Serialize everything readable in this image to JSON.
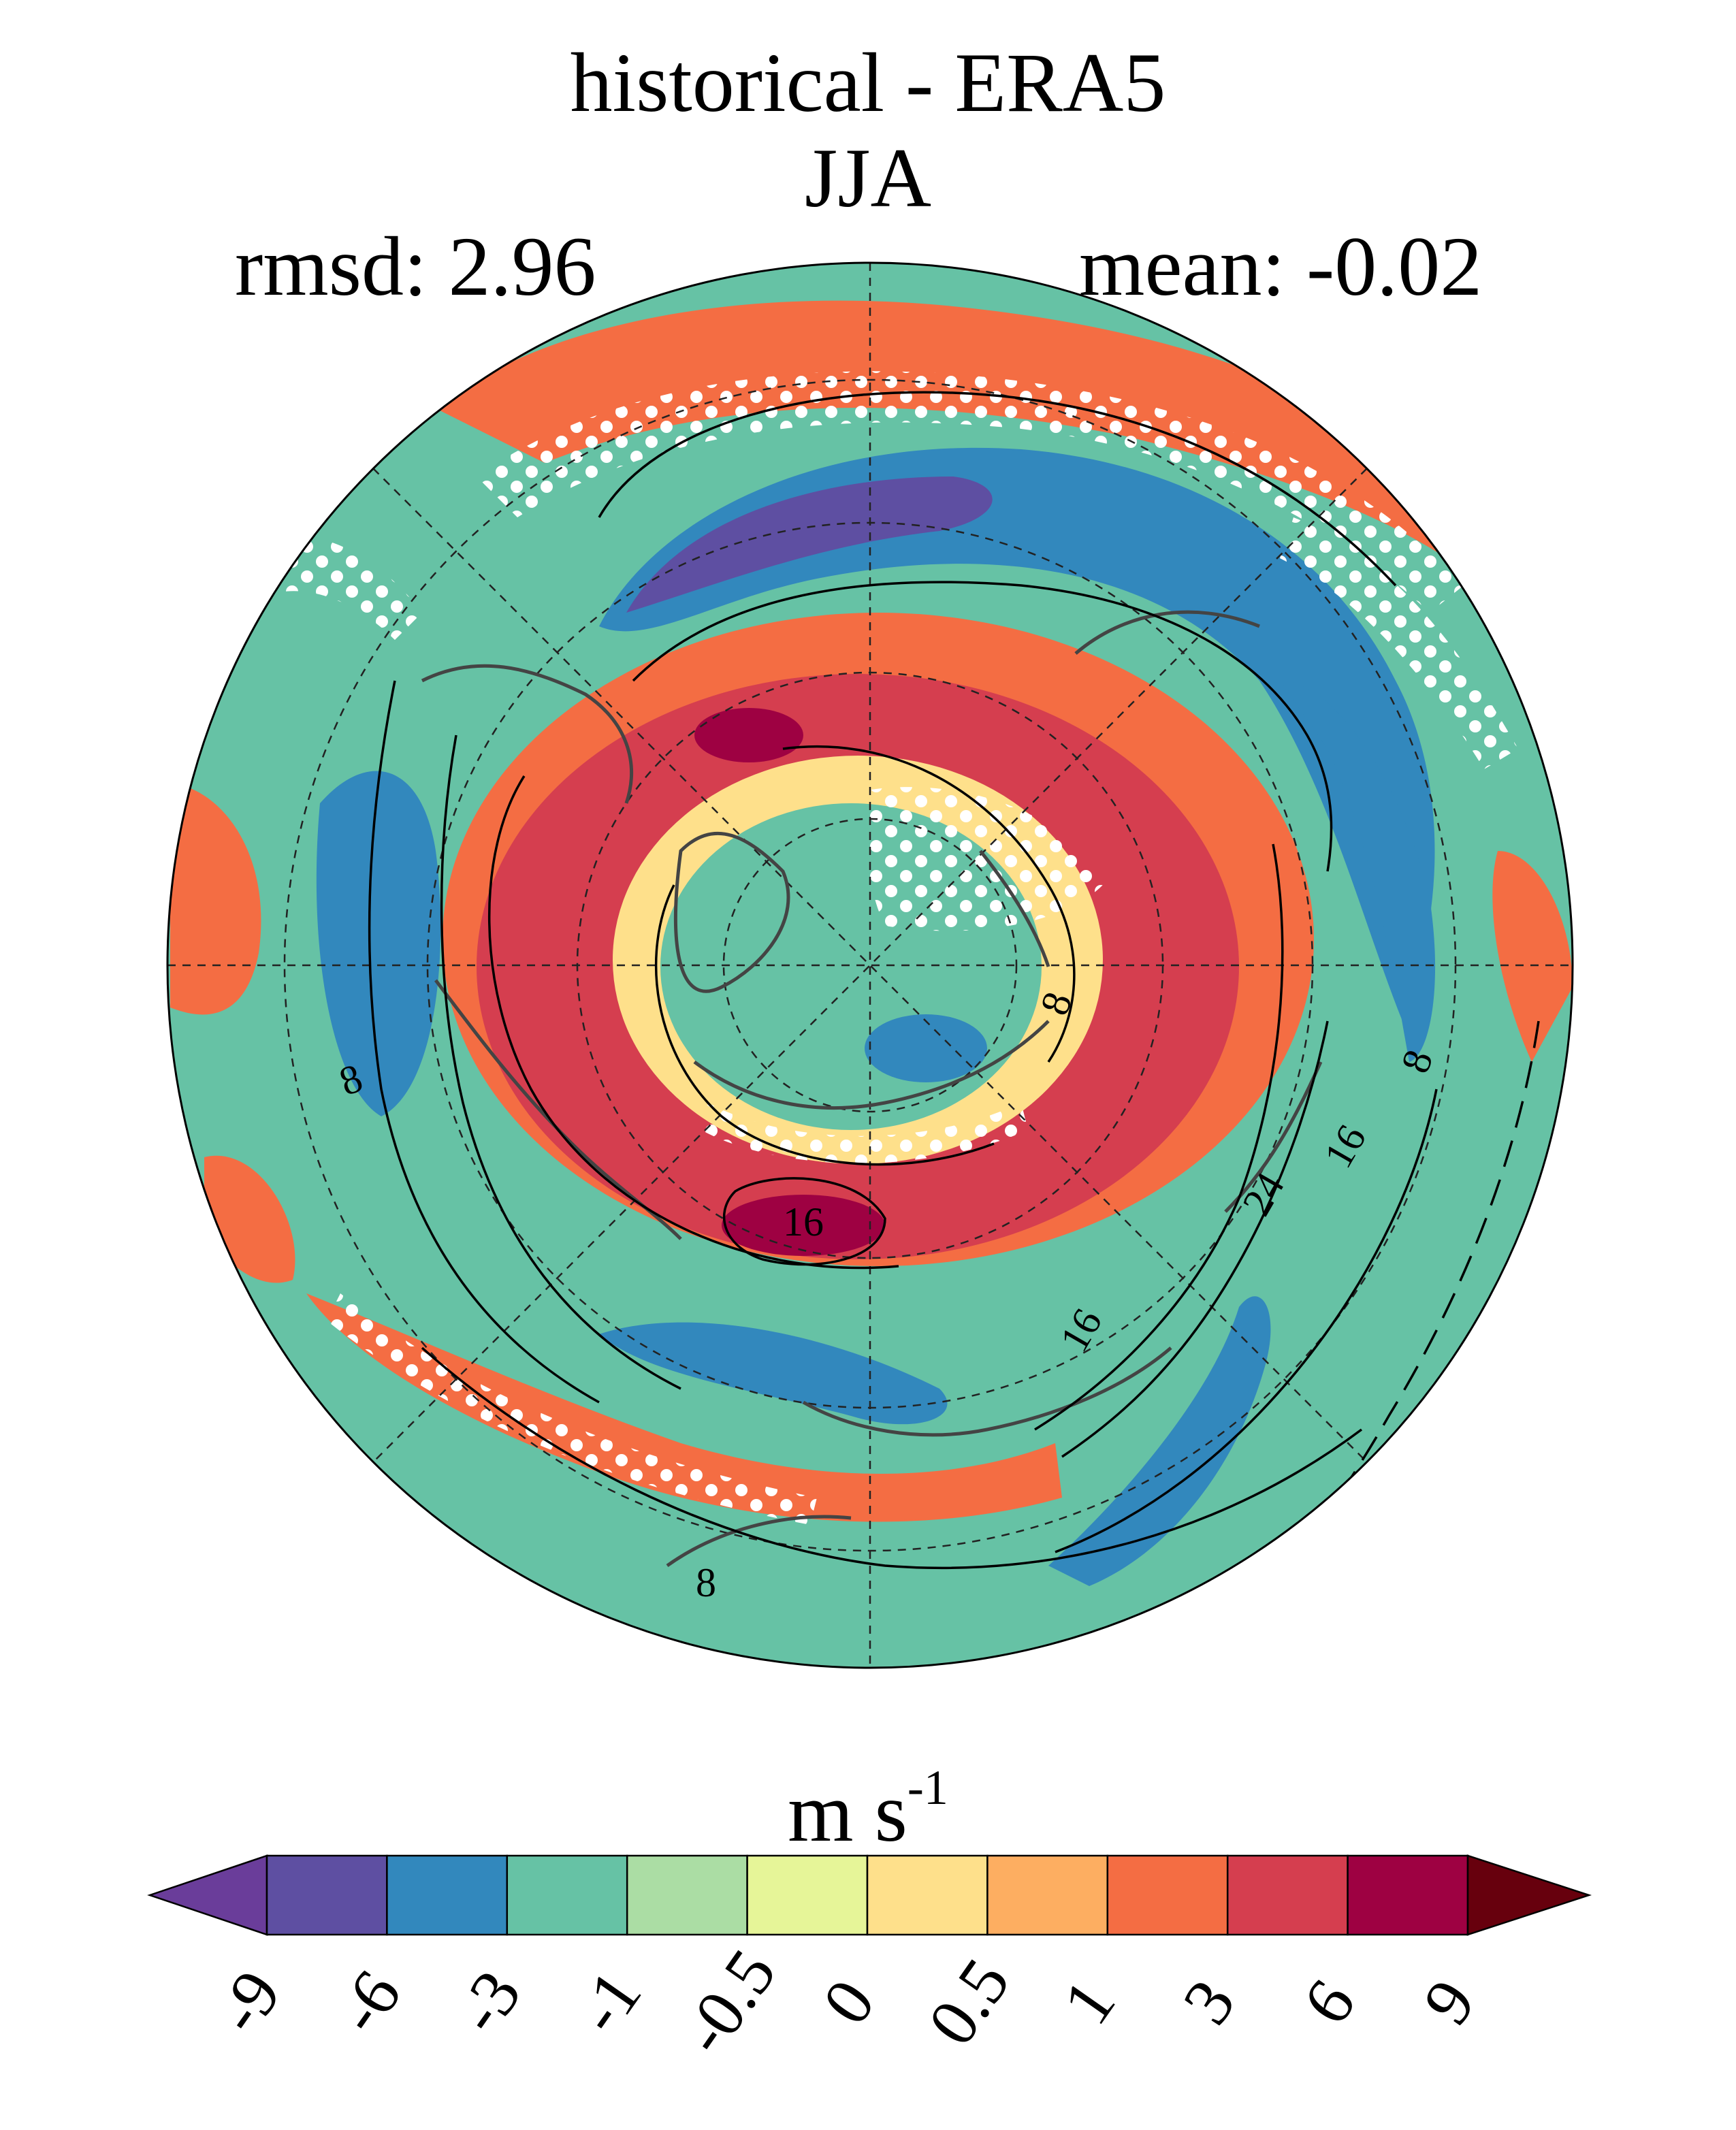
{
  "title": {
    "line1": "historical - ERA5",
    "line2": "JJA"
  },
  "stats": {
    "rmsd_label": "rmsd: 2.96",
    "mean_label": "mean: -0.02"
  },
  "map": {
    "projection": "north-polar-stereographic",
    "contour_labels": [
      "8",
      "8",
      "8",
      "16",
      "16",
      "16",
      "24",
      "8"
    ],
    "stippling": "white dots"
  },
  "colorbar": {
    "unit_base": "m s",
    "unit_exp": "-1",
    "ticks": [
      "-9",
      "-6",
      "-3",
      "-1",
      "-0.5",
      "0",
      "0.5",
      "1",
      "3",
      "6",
      "9"
    ],
    "colors": [
      "#5e4fa2",
      "#3288bd",
      "#66c2a5",
      "#abdda4",
      "#e6f598",
      "#fee08b",
      "#fdae61",
      "#f46d43",
      "#d53e4f",
      "#9e0142"
    ],
    "under_color": "#6a3d9a",
    "over_color": "#67000d"
  }
}
